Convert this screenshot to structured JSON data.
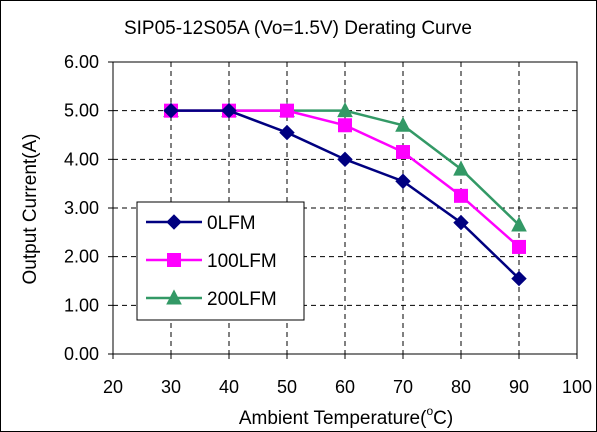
{
  "chart_data": {
    "type": "line",
    "title": "SIP05-12S05A (Vo=1.5V) Derating Curve",
    "xlabel": "Ambient Temperature(",
    "xlabel_sup": "o",
    "xlabel_tail": "C)",
    "ylabel": "Output Current(A)",
    "xlim": [
      20,
      100
    ],
    "ylim": [
      0,
      6
    ],
    "x_ticks": [
      20,
      30,
      40,
      50,
      60,
      70,
      80,
      90,
      100
    ],
    "x_tick_labels": [
      "20",
      "30",
      "40",
      "50",
      "60",
      "70",
      "80",
      "90",
      "100"
    ],
    "y_ticks": [
      0,
      1,
      2,
      3,
      4,
      5,
      6
    ],
    "y_tick_labels": [
      "0.00",
      "1.00",
      "2.00",
      "3.00",
      "4.00",
      "5.00",
      "6.00"
    ],
    "grid": true,
    "legend_position": "bottom-left",
    "x": [
      30,
      40,
      50,
      60,
      70,
      80,
      90
    ],
    "series": [
      {
        "name": "0LFM",
        "values": [
          5.0,
          5.0,
          4.55,
          4.0,
          3.55,
          2.7,
          1.55
        ],
        "color": "#000080",
        "marker": "diamond"
      },
      {
        "name": "100LFM",
        "values": [
          5.0,
          5.0,
          5.0,
          4.7,
          4.15,
          3.25,
          2.2
        ],
        "color": "#ff00ff",
        "marker": "square"
      },
      {
        "name": "200LFM",
        "values": [
          5.0,
          5.0,
          5.0,
          5.0,
          4.7,
          3.8,
          2.65
        ],
        "color": "#339966",
        "marker": "triangle"
      }
    ]
  }
}
